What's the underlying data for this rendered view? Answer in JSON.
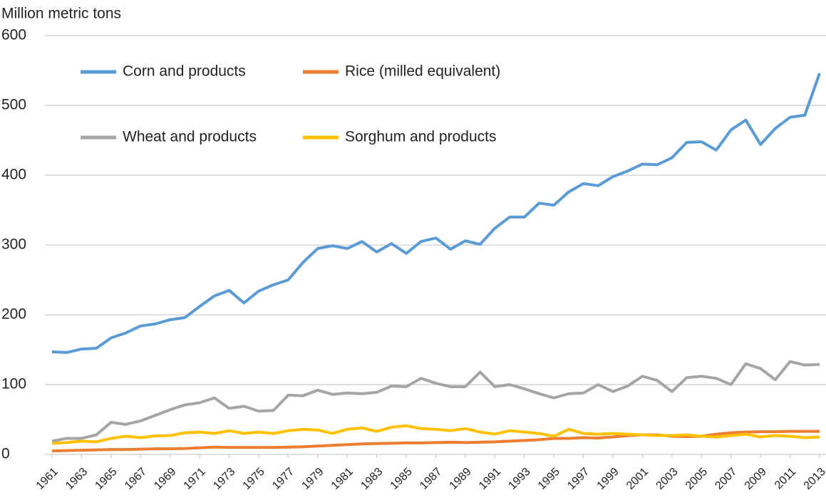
{
  "chart_data": {
    "type": "line",
    "y_axis_label": "Million metric tons",
    "x": [
      1961,
      1962,
      1963,
      1964,
      1965,
      1966,
      1967,
      1968,
      1969,
      1970,
      1971,
      1972,
      1973,
      1974,
      1975,
      1976,
      1977,
      1978,
      1979,
      1980,
      1981,
      1982,
      1983,
      1984,
      1985,
      1986,
      1987,
      1988,
      1989,
      1990,
      1991,
      1992,
      1993,
      1994,
      1995,
      1996,
      1997,
      1998,
      1999,
      2000,
      2001,
      2002,
      2003,
      2004,
      2005,
      2006,
      2007,
      2008,
      2009,
      2010,
      2011,
      2012,
      2013
    ],
    "xlim": [
      1961,
      2013
    ],
    "xticks": [
      1961,
      1963,
      1965,
      1967,
      1969,
      1971,
      1973,
      1975,
      1977,
      1979,
      1981,
      1983,
      1985,
      1987,
      1989,
      1991,
      1993,
      1995,
      1997,
      1999,
      2001,
      2003,
      2005,
      2007,
      2009,
      2011,
      2013
    ],
    "ylim": [
      0,
      600
    ],
    "yticks": [
      0,
      100,
      200,
      300,
      400,
      500,
      600
    ],
    "grid": true,
    "legend": "top-left",
    "series": [
      {
        "name": "Corn and products",
        "color": "#5b9bd5",
        "values": [
          147,
          146,
          151,
          152,
          167,
          174,
          184,
          187,
          193,
          196,
          212,
          227,
          235,
          217,
          234,
          243,
          250,
          275,
          295,
          299,
          295,
          305,
          290,
          302,
          288,
          305,
          310,
          294,
          306,
          301,
          324,
          340,
          340,
          360,
          357,
          376,
          388,
          385,
          398,
          406,
          416,
          415,
          425,
          447,
          448,
          436,
          465,
          479,
          444,
          467,
          483,
          486,
          546
        ]
      },
      {
        "name": "Rice (milled equivalent)",
        "color": "#ed7d31",
        "values": [
          5,
          5.5,
          6,
          6.5,
          7,
          7,
          7.5,
          8,
          8,
          8.5,
          9.5,
          10.5,
          10,
          10,
          10,
          10,
          10.5,
          11,
          12,
          13,
          14,
          15,
          15.5,
          16,
          16.5,
          16.5,
          17,
          17.5,
          17,
          17.5,
          18,
          19,
          20,
          21,
          23,
          23,
          24,
          23.5,
          25,
          27,
          28,
          28,
          26,
          25.5,
          26,
          29,
          31,
          32,
          32.5,
          32.5,
          33,
          33,
          33
        ]
      },
      {
        "name": "Wheat and products",
        "color": "#a5a5a5",
        "values": [
          19,
          23,
          23,
          28,
          46,
          43,
          48,
          56,
          64,
          71,
          74,
          81,
          66,
          69,
          62,
          63,
          85,
          84,
          92,
          86,
          88,
          87,
          89,
          98,
          97,
          109,
          102,
          97,
          97,
          118,
          97,
          100,
          94,
          87,
          81,
          87,
          88,
          100,
          90,
          98,
          112,
          106,
          90,
          110,
          112,
          109,
          100,
          130,
          123,
          107,
          133,
          128,
          129
        ]
      },
      {
        "name": "Sorghum and products",
        "color": "#ffc000",
        "values": [
          16,
          17,
          19,
          18,
          23,
          26,
          24,
          26.5,
          27,
          31,
          32,
          30,
          34,
          30,
          32,
          30,
          34,
          36,
          35,
          30,
          36,
          38,
          33,
          39,
          41,
          37,
          36,
          34,
          37,
          32,
          29,
          34,
          32,
          30,
          26,
          36,
          30,
          29,
          30,
          29,
          28,
          27,
          27,
          28,
          26,
          25,
          27,
          29,
          25,
          27,
          26,
          24,
          25
        ]
      }
    ]
  }
}
